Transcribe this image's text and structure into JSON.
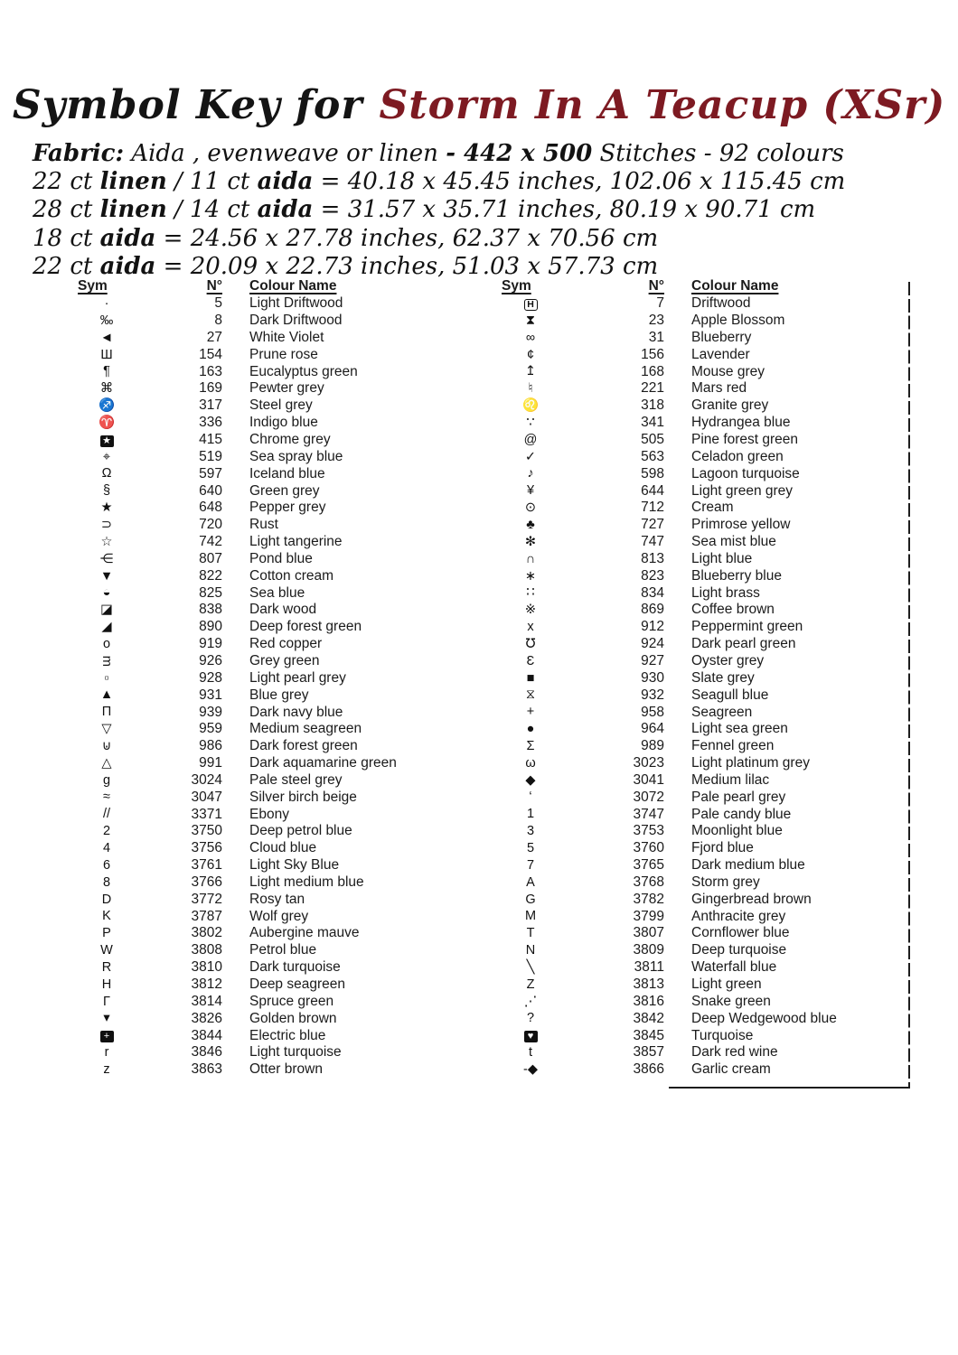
{
  "title": {
    "prefix": "Symbol Key for",
    "name": "Storm In A Teacup (XSr)"
  },
  "colors": {
    "accent_red": "#7d1a22",
    "ink": "#1b1b1b"
  },
  "fabric_lines": [
    [
      {
        "t": "Fabric:",
        "b": true
      },
      {
        "t": "  Aida , evenweave or  linen ",
        "b": false
      },
      {
        "t": "- 442 x 500",
        "b": true
      },
      {
        "t": " Stitches - 92 colours",
        "b": false
      }
    ],
    [
      {
        "t": "22 ct ",
        "b": false
      },
      {
        "t": "linen",
        "b": true
      },
      {
        "t": " / 11 ct ",
        "b": false
      },
      {
        "t": "aida",
        "b": true
      },
      {
        "t": " = 40.18 x 45.45 inches, 102.06 x 115.45 cm",
        "b": false
      }
    ],
    [
      {
        "t": "28 ct ",
        "b": false
      },
      {
        "t": "linen",
        "b": true
      },
      {
        "t": " / 14 ct ",
        "b": false
      },
      {
        "t": "aida",
        "b": true
      },
      {
        "t": " = 31.57 x 35.71 inches, 80.19 x 90.71 cm",
        "b": false
      }
    ],
    [
      {
        "t": "18 ct ",
        "b": false
      },
      {
        "t": "aida",
        "b": true
      },
      {
        "t": "  = 24.56 x 27.78 inches, 62.37 x 70.56 cm",
        "b": false
      }
    ],
    [
      {
        "t": "22 ct ",
        "b": false
      },
      {
        "t": "aida",
        "b": true
      },
      {
        "t": " = 20.09 x 22.73 inches, 51.03 x 57.73 cm",
        "b": false
      }
    ]
  ],
  "key": {
    "headers": {
      "sym": "Sym",
      "num": "N°",
      "name": "Colour Name"
    },
    "left_rows": [
      {
        "sym": "·",
        "num": "5",
        "name": "Light Driftwood"
      },
      {
        "sym": "‰",
        "num": "8",
        "name": "Dark Driftwood"
      },
      {
        "sym": "◄",
        "num": "27",
        "name": "White Violet"
      },
      {
        "sym": "Ш",
        "num": "154",
        "name": "Prune rose"
      },
      {
        "sym": "¶",
        "num": "163",
        "name": "Eucalyptus green"
      },
      {
        "sym": "⌘",
        "num": "169",
        "name": "Pewter grey"
      },
      {
        "sym": "♐",
        "num": "317",
        "name": "Steel grey"
      },
      {
        "sym": "♈",
        "num": "336",
        "name": "Indigo blue"
      },
      {
        "sym": "★",
        "inv": true,
        "num": "415",
        "name": "Chrome grey"
      },
      {
        "sym": "⌖",
        "num": "519",
        "name": "Sea spray blue"
      },
      {
        "sym": "Ω",
        "num": "597",
        "name": "Iceland blue"
      },
      {
        "sym": "§",
        "num": "640",
        "name": "Green grey"
      },
      {
        "sym": "★",
        "num": "648",
        "name": "Pepper grey"
      },
      {
        "sym": "⊃",
        "num": "720",
        "name": "Rust"
      },
      {
        "sym": "☆",
        "num": "742",
        "name": "Light tangerine"
      },
      {
        "sym": "⋲",
        "num": "807",
        "name": "Pond blue"
      },
      {
        "sym": "▼",
        "num": "822",
        "name": "Cotton cream"
      },
      {
        "sym": "◒",
        "num": "825",
        "name": "Sea blue"
      },
      {
        "sym": "◪",
        "num": "838",
        "name": "Dark wood"
      },
      {
        "sym": "◢",
        "num": "890",
        "name": "Deep forest green"
      },
      {
        "sym": "o",
        "num": "919",
        "name": "Red copper"
      },
      {
        "sym": "ᴟ",
        "num": "926",
        "name": "Grey green"
      },
      {
        "sym": "▫",
        "num": "928",
        "name": "Light pearl grey"
      },
      {
        "sym": "▲",
        "num": "931",
        "name": "Blue grey"
      },
      {
        "sym": "Π",
        "num": "939",
        "name": "Dark navy blue"
      },
      {
        "sym": "▽",
        "num": "959",
        "name": "Medium seagreen"
      },
      {
        "sym": "⊍",
        "num": "986",
        "name": "Dark forest green"
      },
      {
        "sym": "△",
        "num": "991",
        "name": "Dark aquamarine green"
      },
      {
        "sym": "g",
        "num": "3024",
        "name": "Pale steel grey"
      },
      {
        "sym": "≈",
        "num": "3047",
        "name": "Silver birch beige"
      },
      {
        "sym": "//",
        "num": "3371",
        "name": "Ebony"
      },
      {
        "sym": "2",
        "num": "3750",
        "name": "Deep petrol blue"
      },
      {
        "sym": "4",
        "num": "3756",
        "name": "Cloud blue"
      },
      {
        "sym": "6",
        "num": "3761",
        "name": "Light Sky Blue"
      },
      {
        "sym": "8",
        "num": "3766",
        "name": "Light medium blue"
      },
      {
        "sym": "D",
        "num": "3772",
        "name": "Rosy tan"
      },
      {
        "sym": "K",
        "num": "3787",
        "name": "Wolf grey"
      },
      {
        "sym": "P",
        "num": "3802",
        "name": "Aubergine mauve"
      },
      {
        "sym": "W",
        "num": "3808",
        "name": "Petrol blue"
      },
      {
        "sym": "R",
        "num": "3810",
        "name": "Dark turquoise"
      },
      {
        "sym": "H",
        "num": "3812",
        "name": "Deep seagreen"
      },
      {
        "sym": "Γ",
        "num": "3814",
        "name": "Spruce green"
      },
      {
        "sym": "▾",
        "num": "3826",
        "name": "Golden brown"
      },
      {
        "sym": "+",
        "inv": true,
        "num": "3844",
        "name": "Electric blue"
      },
      {
        "sym": "r",
        "num": "3846",
        "name": "Light turquoise"
      },
      {
        "sym": "z",
        "num": "3863",
        "name": "Otter brown"
      }
    ],
    "right_rows": [
      {
        "sym": "H",
        "box": true,
        "num": "7",
        "name": "Driftwood"
      },
      {
        "sym": "⧗",
        "num": "23",
        "name": "Apple Blossom"
      },
      {
        "sym": "∞",
        "num": "31",
        "name": "Blueberry"
      },
      {
        "sym": "¢",
        "num": "156",
        "name": "Lavender"
      },
      {
        "sym": "↥",
        "num": "168",
        "name": "Mouse grey"
      },
      {
        "sym": "♮",
        "num": "221",
        "name": "Mars red"
      },
      {
        "sym": "♌",
        "num": "318",
        "name": "Granite grey"
      },
      {
        "sym": "∵",
        "num": "341",
        "name": "Hydrangea blue"
      },
      {
        "sym": "@",
        "num": "505",
        "name": "Pine forest green"
      },
      {
        "sym": "✓",
        "num": "563",
        "name": "Celadon green"
      },
      {
        "sym": "♪",
        "num": "598",
        "name": "Lagoon turquoise"
      },
      {
        "sym": "¥",
        "num": "644",
        "name": "Light green grey"
      },
      {
        "sym": "⊙",
        "num": "712",
        "name": "Cream"
      },
      {
        "sym": "♣",
        "num": "727",
        "name": "Primrose yellow"
      },
      {
        "sym": "✻",
        "num": "747",
        "name": "Sea mist blue"
      },
      {
        "sym": "∩",
        "num": "813",
        "name": "Light blue"
      },
      {
        "sym": "∗",
        "num": "823",
        "name": "Blueberry blue"
      },
      {
        "sym": "∷",
        "num": "834",
        "name": "Light brass"
      },
      {
        "sym": "※",
        "num": "869",
        "name": "Coffee brown"
      },
      {
        "sym": "x",
        "num": "912",
        "name": "Peppermint green"
      },
      {
        "sym": "℧",
        "num": "924",
        "name": "Dark pearl green"
      },
      {
        "sym": "Ɛ",
        "num": "927",
        "name": "Oyster grey"
      },
      {
        "sym": "■",
        "num": "930",
        "name": "Slate grey"
      },
      {
        "sym": "⧖",
        "num": "932",
        "name": "Seagull blue"
      },
      {
        "sym": "+",
        "num": "958",
        "name": "Seagreen"
      },
      {
        "sym": "●",
        "num": "964",
        "name": "Light sea green"
      },
      {
        "sym": "Σ",
        "num": "989",
        "name": "Fennel green"
      },
      {
        "sym": "ω",
        "num": "3023",
        "name": "Light platinum grey"
      },
      {
        "sym": "◆",
        "num": "3041",
        "name": "Medium lilac"
      },
      {
        "sym": "‘",
        "num": "3072",
        "name": "Pale pearl grey"
      },
      {
        "sym": "1",
        "num": "3747",
        "name": "Pale candy blue"
      },
      {
        "sym": "3",
        "num": "3753",
        "name": "Moonlight blue"
      },
      {
        "sym": "5",
        "num": "3760",
        "name": "Fjord blue"
      },
      {
        "sym": "7",
        "num": "3765",
        "name": "Dark medium blue"
      },
      {
        "sym": "A",
        "num": "3768",
        "name": "Storm grey"
      },
      {
        "sym": "G",
        "num": "3782",
        "name": "Gingerbread brown"
      },
      {
        "sym": "M",
        "num": "3799",
        "name": "Anthracite grey"
      },
      {
        "sym": "T",
        "num": "3807",
        "name": "Cornflower blue"
      },
      {
        "sym": "N",
        "num": "3809",
        "name": "Deep turquoise"
      },
      {
        "sym": "╲",
        "num": "3811",
        "name": "Waterfall blue"
      },
      {
        "sym": "Z",
        "num": "3813",
        "name": "Light green"
      },
      {
        "sym": "⋰",
        "num": "3816",
        "name": "Snake green"
      },
      {
        "sym": "?",
        "num": "3842",
        "name": "Deep Wedgewood blue"
      },
      {
        "sym": "♥",
        "inv": true,
        "num": "3845",
        "name": "Turquoise"
      },
      {
        "sym": "t",
        "num": "3857",
        "name": "Dark red wine"
      },
      {
        "sym": "-◆",
        "num": "3866",
        "name": "Garlic cream"
      }
    ]
  }
}
